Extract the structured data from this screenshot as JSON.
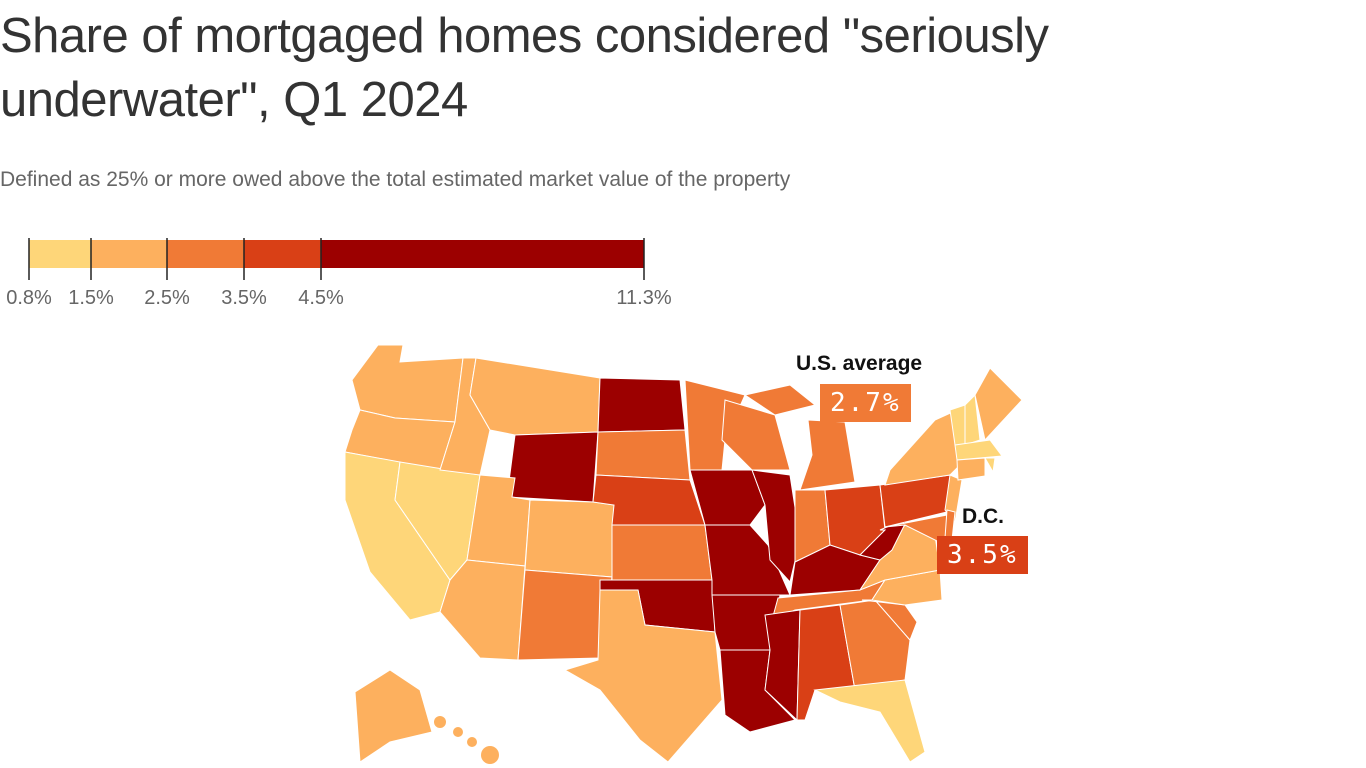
{
  "header": {
    "title": "Share of mortgaged homes considered \"seriously underwater\", Q1 2024",
    "subtitle": "Defined as 25% or more owed above the total estimated market value of the property"
  },
  "chart_data": {
    "type": "choropleth",
    "legend": {
      "breaks": [
        0.8,
        1.5,
        2.5,
        3.5,
        4.5,
        11.3
      ],
      "tick_labels": [
        "0.8%",
        "1.5%",
        "2.5%",
        "3.5%",
        "4.5%",
        "11.3%"
      ],
      "colors": [
        "#fed679",
        "#fdb05e",
        "#f07a36",
        "#d94016",
        "#9c0000"
      ]
    },
    "state_bins": {
      "WA": "1.5-2.5",
      "OR": "1.5-2.5",
      "CA": "0.8-1.5",
      "NV": "0.8-1.5",
      "ID": "1.5-2.5",
      "MT": "1.5-2.5",
      "WY": "4.5-11.3",
      "UT": "1.5-2.5",
      "CO": "1.5-2.5",
      "AZ": "1.5-2.5",
      "NM": "2.5-3.5",
      "ND": "4.5-11.3",
      "SD": "2.5-3.5",
      "NE": "3.5-4.5",
      "KS": "2.5-3.5",
      "OK": "4.5-11.3",
      "TX": "1.5-2.5",
      "MN": "2.5-3.5",
      "IA": "4.5-11.3",
      "MO": "4.5-11.3",
      "AR": "4.5-11.3",
      "LA": "4.5-11.3",
      "WI": "2.5-3.5",
      "IL": "4.5-11.3",
      "MI": "2.5-3.5",
      "IN": "2.5-3.5",
      "OH": "3.5-4.5",
      "KY": "4.5-11.3",
      "TN": "2.5-3.5",
      "MS": "4.5-11.3",
      "AL": "3.5-4.5",
      "GA": "2.5-3.5",
      "FL": "0.8-1.5",
      "SC": "2.5-3.5",
      "NC": "1.5-2.5",
      "VA": "1.5-2.5",
      "WV": "4.5-11.3",
      "PA": "3.5-4.5",
      "NY": "1.5-2.5",
      "VT": "0.8-1.5",
      "NH": "0.8-1.5",
      "ME": "1.5-2.5",
      "MA": "0.8-1.5",
      "CT": "1.5-2.5",
      "RI": "0.8-1.5",
      "NJ": "1.5-2.5",
      "DE": "2.5-3.5",
      "MD": "2.5-3.5",
      "AK": "1.5-2.5",
      "HI": "1.5-2.5"
    },
    "annotations": [
      {
        "label": "U.S. average",
        "value": "2.7%",
        "color": "#f07a36"
      },
      {
        "label": "D.C.",
        "value": "3.5%",
        "color": "#d94016"
      }
    ]
  }
}
